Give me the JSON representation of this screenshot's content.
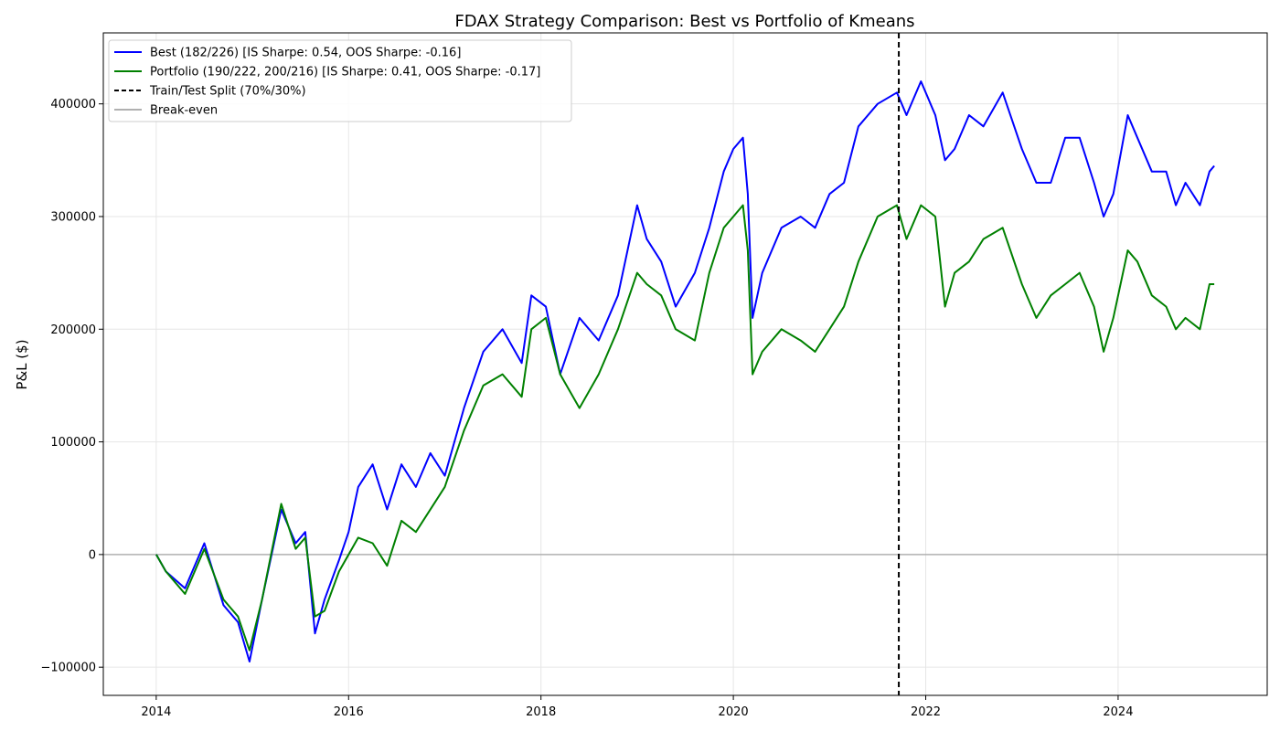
{
  "chart_data": {
    "type": "line",
    "title": "FDAX Strategy Comparison: Best vs Portfolio of Kmeans",
    "xlabel": "",
    "ylabel": "P&L ($)",
    "x_ticks": [
      "2014",
      "2016",
      "2018",
      "2020",
      "2022",
      "2024"
    ],
    "y_ticks": [
      "−100000",
      "0",
      "100000",
      "200000",
      "300000",
      "400000"
    ],
    "xlim": [
      2013.45,
      2025.55
    ],
    "ylim": [
      -125000,
      463000
    ],
    "grid": true,
    "legend_position": "top-left",
    "series": [
      {
        "name": "Best (182/226) [IS Sharpe: 0.54, OOS Sharpe: -0.16]",
        "color": "#0000ff",
        "x": [
          2014.0,
          2014.1,
          2014.3,
          2014.5,
          2014.7,
          2014.85,
          2014.97,
          2015.1,
          2015.3,
          2015.45,
          2015.55,
          2015.65,
          2015.75,
          2015.9,
          2016.0,
          2016.1,
          2016.25,
          2016.4,
          2016.55,
          2016.7,
          2016.85,
          2017.0,
          2017.2,
          2017.4,
          2017.6,
          2017.8,
          2017.9,
          2018.05,
          2018.2,
          2018.4,
          2018.6,
          2018.8,
          2019.0,
          2019.1,
          2019.25,
          2019.4,
          2019.6,
          2019.75,
          2019.9,
          2020.0,
          2020.1,
          2020.15,
          2020.2,
          2020.3,
          2020.5,
          2020.7,
          2020.85,
          2021.0,
          2021.15,
          2021.3,
          2021.5,
          2021.7,
          2021.8,
          2021.95,
          2022.1,
          2022.2,
          2022.3,
          2022.45,
          2022.6,
          2022.8,
          2023.0,
          2023.15,
          2023.3,
          2023.45,
          2023.6,
          2023.75,
          2023.85,
          2023.95,
          2024.1,
          2024.2,
          2024.35,
          2024.5,
          2024.6,
          2024.7,
          2024.85,
          2024.95,
          2025.0
        ],
        "values": [
          0,
          -15000,
          -30000,
          10000,
          -45000,
          -60000,
          -95000,
          -40000,
          40000,
          10000,
          20000,
          -70000,
          -40000,
          -5000,
          20000,
          60000,
          80000,
          40000,
          80000,
          60000,
          90000,
          70000,
          130000,
          180000,
          200000,
          170000,
          230000,
          220000,
          160000,
          210000,
          190000,
          230000,
          310000,
          280000,
          260000,
          220000,
          250000,
          290000,
          340000,
          360000,
          370000,
          320000,
          210000,
          250000,
          290000,
          300000,
          290000,
          320000,
          330000,
          380000,
          400000,
          410000,
          390000,
          420000,
          390000,
          350000,
          360000,
          390000,
          380000,
          410000,
          360000,
          330000,
          330000,
          370000,
          370000,
          330000,
          300000,
          320000,
          390000,
          370000,
          340000,
          340000,
          310000,
          330000,
          310000,
          340000,
          345000
        ]
      },
      {
        "name": "Portfolio (190/222, 200/216) [IS Sharpe: 0.41, OOS Sharpe: -0.17]",
        "color": "#008000",
        "x": [
          2014.0,
          2014.1,
          2014.3,
          2014.5,
          2014.7,
          2014.85,
          2014.97,
          2015.1,
          2015.3,
          2015.45,
          2015.55,
          2015.65,
          2015.75,
          2015.9,
          2016.0,
          2016.1,
          2016.25,
          2016.4,
          2016.55,
          2016.7,
          2016.85,
          2017.0,
          2017.2,
          2017.4,
          2017.6,
          2017.8,
          2017.9,
          2018.05,
          2018.2,
          2018.4,
          2018.6,
          2018.8,
          2019.0,
          2019.1,
          2019.25,
          2019.4,
          2019.6,
          2019.75,
          2019.9,
          2020.0,
          2020.1,
          2020.15,
          2020.2,
          2020.3,
          2020.5,
          2020.7,
          2020.85,
          2021.0,
          2021.15,
          2021.3,
          2021.5,
          2021.7,
          2021.8,
          2021.95,
          2022.1,
          2022.2,
          2022.3,
          2022.45,
          2022.6,
          2022.8,
          2023.0,
          2023.15,
          2023.3,
          2023.45,
          2023.6,
          2023.75,
          2023.85,
          2023.95,
          2024.1,
          2024.2,
          2024.35,
          2024.5,
          2024.6,
          2024.7,
          2024.85,
          2024.95,
          2025.0
        ],
        "values": [
          0,
          -15000,
          -35000,
          5000,
          -40000,
          -55000,
          -85000,
          -40000,
          45000,
          5000,
          15000,
          -55000,
          -50000,
          -15000,
          0,
          15000,
          10000,
          -10000,
          30000,
          20000,
          40000,
          60000,
          110000,
          150000,
          160000,
          140000,
          200000,
          210000,
          160000,
          130000,
          160000,
          200000,
          250000,
          240000,
          230000,
          200000,
          190000,
          250000,
          290000,
          300000,
          310000,
          270000,
          160000,
          180000,
          200000,
          190000,
          180000,
          200000,
          220000,
          260000,
          300000,
          310000,
          280000,
          310000,
          300000,
          220000,
          250000,
          260000,
          280000,
          290000,
          240000,
          210000,
          230000,
          240000,
          250000,
          220000,
          180000,
          210000,
          270000,
          260000,
          230000,
          220000,
          200000,
          210000,
          200000,
          240000,
          240000
        ]
      }
    ],
    "vline": {
      "x": 2021.72,
      "label": "Train/Test Split (70%/30%)",
      "color": "#000000"
    },
    "hline": {
      "y": 0,
      "label": "Break-even",
      "color": "#b0b0b0"
    }
  }
}
